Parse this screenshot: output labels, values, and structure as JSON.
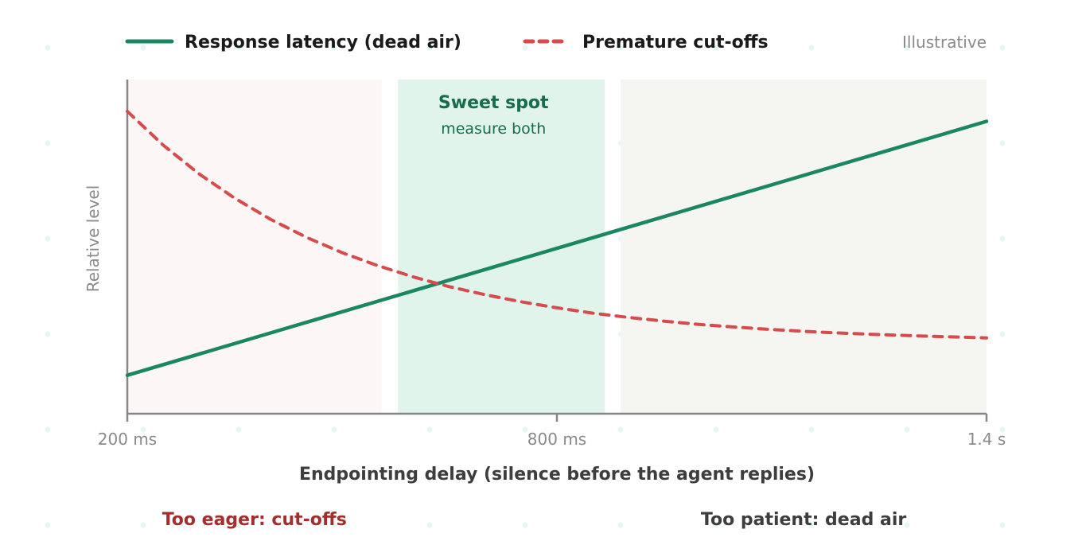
{
  "chart_data": {
    "type": "line",
    "x_unit": "ms",
    "xlabel": "Endpointing delay (silence before the agent replies)",
    "ylabel": "Relative level",
    "xlim": [
      200,
      1400
    ],
    "ylim": [
      0,
      1
    ],
    "x_ticks": [
      {
        "value": 200,
        "label": "200 ms"
      },
      {
        "value": 800,
        "label": "800 ms"
      },
      {
        "value": 1400,
        "label": "1.4 s"
      }
    ],
    "note": "Illustrative",
    "legend_position": "top",
    "grid": false,
    "series": [
      {
        "name": "Response latency (dead air)",
        "color": "#1b8762",
        "style": "solid",
        "x": [
          200,
          1400
        ],
        "y": [
          0.115,
          0.875
        ]
      },
      {
        "name": "Premature cut-offs",
        "color": "#d64b4b",
        "style": "dashed",
        "x": [
          200,
          250,
          300,
          350,
          400,
          450,
          500,
          550,
          600,
          650,
          700,
          750,
          800,
          850,
          900,
          950,
          1000,
          1050,
          1100,
          1150,
          1200,
          1250,
          1300,
          1350,
          1400
        ],
        "y": [
          0.905,
          0.804,
          0.718,
          0.645,
          0.582,
          0.528,
          0.482,
          0.443,
          0.409,
          0.38,
          0.356,
          0.335,
          0.317,
          0.301,
          0.288,
          0.277,
          0.267,
          0.259,
          0.252,
          0.246,
          0.241,
          0.237,
          0.233,
          0.23,
          0.227
        ]
      }
    ],
    "zones": [
      {
        "name": "too-eager",
        "x_range": [
          200,
          555
        ],
        "color": "#fdf6f6",
        "caption": "Too eager: cut-offs",
        "caption_color": "#a32e2e"
      },
      {
        "name": "sweet-spot",
        "x_range": [
          578,
          867
        ],
        "color": "#e1f4ec",
        "title": "Sweet spot",
        "subtitle": "measure both",
        "caption_color": "#176c4f"
      },
      {
        "name": "too-patient",
        "x_range": [
          889,
          1400
        ],
        "color": "#f5f5f2",
        "caption": "Too patient: dead air",
        "caption_color": "#3d3d3d"
      }
    ],
    "colors": {
      "axis": "#868686",
      "dots": "#e6f6f0"
    }
  }
}
